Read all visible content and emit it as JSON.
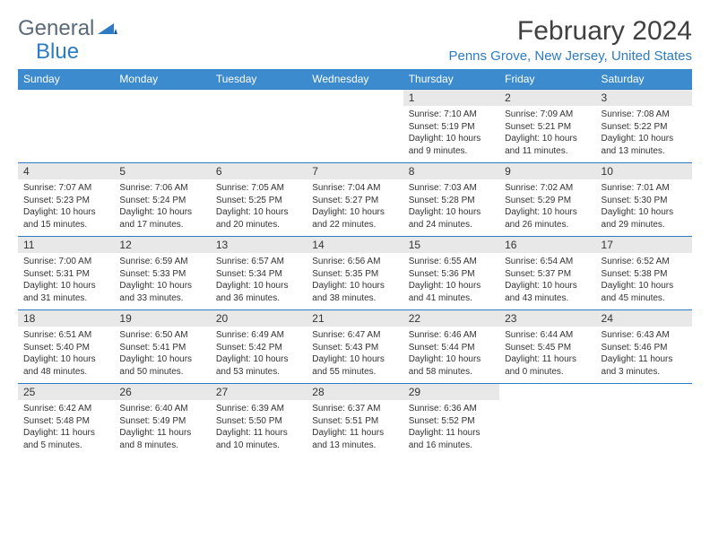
{
  "logo": {
    "part1": "General",
    "part2": "Blue"
  },
  "title": "February 2024",
  "location": "Penns Grove, New Jersey, United States",
  "day_headers": [
    "Sunday",
    "Monday",
    "Tuesday",
    "Wednesday",
    "Thursday",
    "Friday",
    "Saturday"
  ],
  "colors": {
    "header_bg": "#3b8bce",
    "accent": "#2d7bc4",
    "daynum_bg": "#e8e8e8",
    "text": "#333333"
  },
  "weeks": [
    [
      null,
      null,
      null,
      null,
      {
        "n": "1",
        "sr": "7:10 AM",
        "ss": "5:19 PM",
        "dl": "10 hours and 9 minutes."
      },
      {
        "n": "2",
        "sr": "7:09 AM",
        "ss": "5:21 PM",
        "dl": "10 hours and 11 minutes."
      },
      {
        "n": "3",
        "sr": "7:08 AM",
        "ss": "5:22 PM",
        "dl": "10 hours and 13 minutes."
      }
    ],
    [
      {
        "n": "4",
        "sr": "7:07 AM",
        "ss": "5:23 PM",
        "dl": "10 hours and 15 minutes."
      },
      {
        "n": "5",
        "sr": "7:06 AM",
        "ss": "5:24 PM",
        "dl": "10 hours and 17 minutes."
      },
      {
        "n": "6",
        "sr": "7:05 AM",
        "ss": "5:25 PM",
        "dl": "10 hours and 20 minutes."
      },
      {
        "n": "7",
        "sr": "7:04 AM",
        "ss": "5:27 PM",
        "dl": "10 hours and 22 minutes."
      },
      {
        "n": "8",
        "sr": "7:03 AM",
        "ss": "5:28 PM",
        "dl": "10 hours and 24 minutes."
      },
      {
        "n": "9",
        "sr": "7:02 AM",
        "ss": "5:29 PM",
        "dl": "10 hours and 26 minutes."
      },
      {
        "n": "10",
        "sr": "7:01 AM",
        "ss": "5:30 PM",
        "dl": "10 hours and 29 minutes."
      }
    ],
    [
      {
        "n": "11",
        "sr": "7:00 AM",
        "ss": "5:31 PM",
        "dl": "10 hours and 31 minutes."
      },
      {
        "n": "12",
        "sr": "6:59 AM",
        "ss": "5:33 PM",
        "dl": "10 hours and 33 minutes."
      },
      {
        "n": "13",
        "sr": "6:57 AM",
        "ss": "5:34 PM",
        "dl": "10 hours and 36 minutes."
      },
      {
        "n": "14",
        "sr": "6:56 AM",
        "ss": "5:35 PM",
        "dl": "10 hours and 38 minutes."
      },
      {
        "n": "15",
        "sr": "6:55 AM",
        "ss": "5:36 PM",
        "dl": "10 hours and 41 minutes."
      },
      {
        "n": "16",
        "sr": "6:54 AM",
        "ss": "5:37 PM",
        "dl": "10 hours and 43 minutes."
      },
      {
        "n": "17",
        "sr": "6:52 AM",
        "ss": "5:38 PM",
        "dl": "10 hours and 45 minutes."
      }
    ],
    [
      {
        "n": "18",
        "sr": "6:51 AM",
        "ss": "5:40 PM",
        "dl": "10 hours and 48 minutes."
      },
      {
        "n": "19",
        "sr": "6:50 AM",
        "ss": "5:41 PM",
        "dl": "10 hours and 50 minutes."
      },
      {
        "n": "20",
        "sr": "6:49 AM",
        "ss": "5:42 PM",
        "dl": "10 hours and 53 minutes."
      },
      {
        "n": "21",
        "sr": "6:47 AM",
        "ss": "5:43 PM",
        "dl": "10 hours and 55 minutes."
      },
      {
        "n": "22",
        "sr": "6:46 AM",
        "ss": "5:44 PM",
        "dl": "10 hours and 58 minutes."
      },
      {
        "n": "23",
        "sr": "6:44 AM",
        "ss": "5:45 PM",
        "dl": "11 hours and 0 minutes."
      },
      {
        "n": "24",
        "sr": "6:43 AM",
        "ss": "5:46 PM",
        "dl": "11 hours and 3 minutes."
      }
    ],
    [
      {
        "n": "25",
        "sr": "6:42 AM",
        "ss": "5:48 PM",
        "dl": "11 hours and 5 minutes."
      },
      {
        "n": "26",
        "sr": "6:40 AM",
        "ss": "5:49 PM",
        "dl": "11 hours and 8 minutes."
      },
      {
        "n": "27",
        "sr": "6:39 AM",
        "ss": "5:50 PM",
        "dl": "11 hours and 10 minutes."
      },
      {
        "n": "28",
        "sr": "6:37 AM",
        "ss": "5:51 PM",
        "dl": "11 hours and 13 minutes."
      },
      {
        "n": "29",
        "sr": "6:36 AM",
        "ss": "5:52 PM",
        "dl": "11 hours and 16 minutes."
      },
      null,
      null
    ]
  ],
  "labels": {
    "sunrise": "Sunrise:",
    "sunset": "Sunset:",
    "daylight": "Daylight:"
  }
}
